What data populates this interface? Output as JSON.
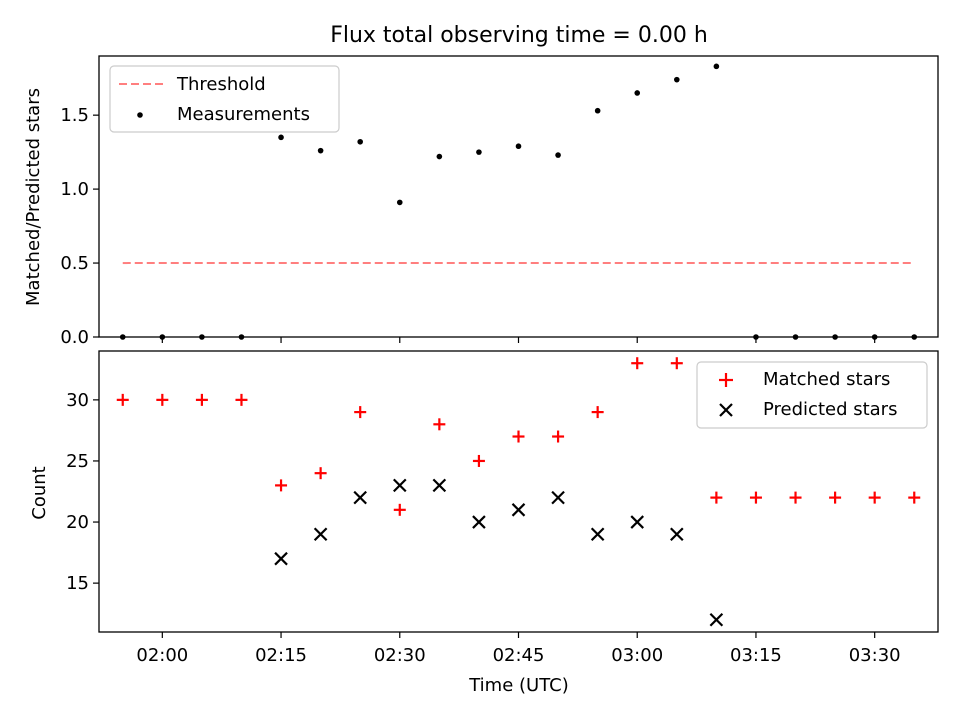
{
  "chart_data": [
    {
      "type": "scatter",
      "title": "Flux total observing time = 0.00 h",
      "xlabel": "",
      "ylabel": "Matched/Predicted stars",
      "ylim": [
        0,
        1.9
      ],
      "yticks": [
        0.0,
        0.5,
        1.0,
        1.5
      ],
      "ytick_labels": [
        "0.0",
        "0.5",
        "1.0",
        "1.5"
      ],
      "xticks_shown": false,
      "legend_position": "top-left",
      "threshold": {
        "name": "Threshold",
        "value": 0.5,
        "color": "#ff7f7f",
        "x_start": "01:55",
        "x_end": "03:35"
      },
      "measurements": {
        "name": "Measurements",
        "color": "#000000",
        "x": [
          "01:55",
          "02:00",
          "02:05",
          "02:10",
          "02:15",
          "02:20",
          "02:25",
          "02:30",
          "02:35",
          "02:40",
          "02:45",
          "02:50",
          "02:55",
          "03:00",
          "03:05",
          "03:10",
          "03:15",
          "03:20",
          "03:25",
          "03:30",
          "03:35"
        ],
        "y": [
          0.0,
          0.0,
          0.0,
          0.0,
          1.35,
          1.26,
          1.32,
          0.91,
          1.22,
          1.25,
          1.29,
          1.23,
          1.53,
          1.65,
          1.74,
          1.83,
          0.0,
          0.0,
          0.0,
          0.0,
          0.0
        ]
      }
    },
    {
      "type": "scatter",
      "title": "",
      "xlabel": "Time (UTC)",
      "ylabel": "Count",
      "ylim": [
        11,
        34
      ],
      "yticks": [
        15,
        20,
        25,
        30
      ],
      "ytick_labels": [
        "15",
        "20",
        "25",
        "30"
      ],
      "xlim": [
        "01:52",
        "03:38"
      ],
      "xticks": [
        "02:00",
        "02:15",
        "02:30",
        "02:45",
        "03:00",
        "03:15",
        "03:30"
      ],
      "legend_position": "top-right",
      "series": [
        {
          "name": "Matched stars",
          "marker": "plus",
          "color": "#ff0000",
          "x": [
            "01:55",
            "02:00",
            "02:05",
            "02:10",
            "02:15",
            "02:20",
            "02:25",
            "02:30",
            "02:35",
            "02:40",
            "02:45",
            "02:50",
            "02:55",
            "03:00",
            "03:05",
            "03:10",
            "03:15",
            "03:20",
            "03:25",
            "03:30",
            "03:35"
          ],
          "y": [
            30,
            30,
            30,
            30,
            23,
            24,
            29,
            21,
            28,
            25,
            27,
            27,
            29,
            33,
            33,
            22,
            22,
            22,
            22,
            22,
            22
          ]
        },
        {
          "name": "Predicted stars",
          "marker": "x",
          "color": "#000000",
          "x": [
            "02:15",
            "02:20",
            "02:25",
            "02:30",
            "02:35",
            "02:40",
            "02:45",
            "02:50",
            "02:55",
            "03:00",
            "03:05",
            "03:10"
          ],
          "y": [
            17,
            19,
            22,
            23,
            23,
            20,
            21,
            22,
            19,
            20,
            19,
            12
          ]
        }
      ]
    }
  ]
}
